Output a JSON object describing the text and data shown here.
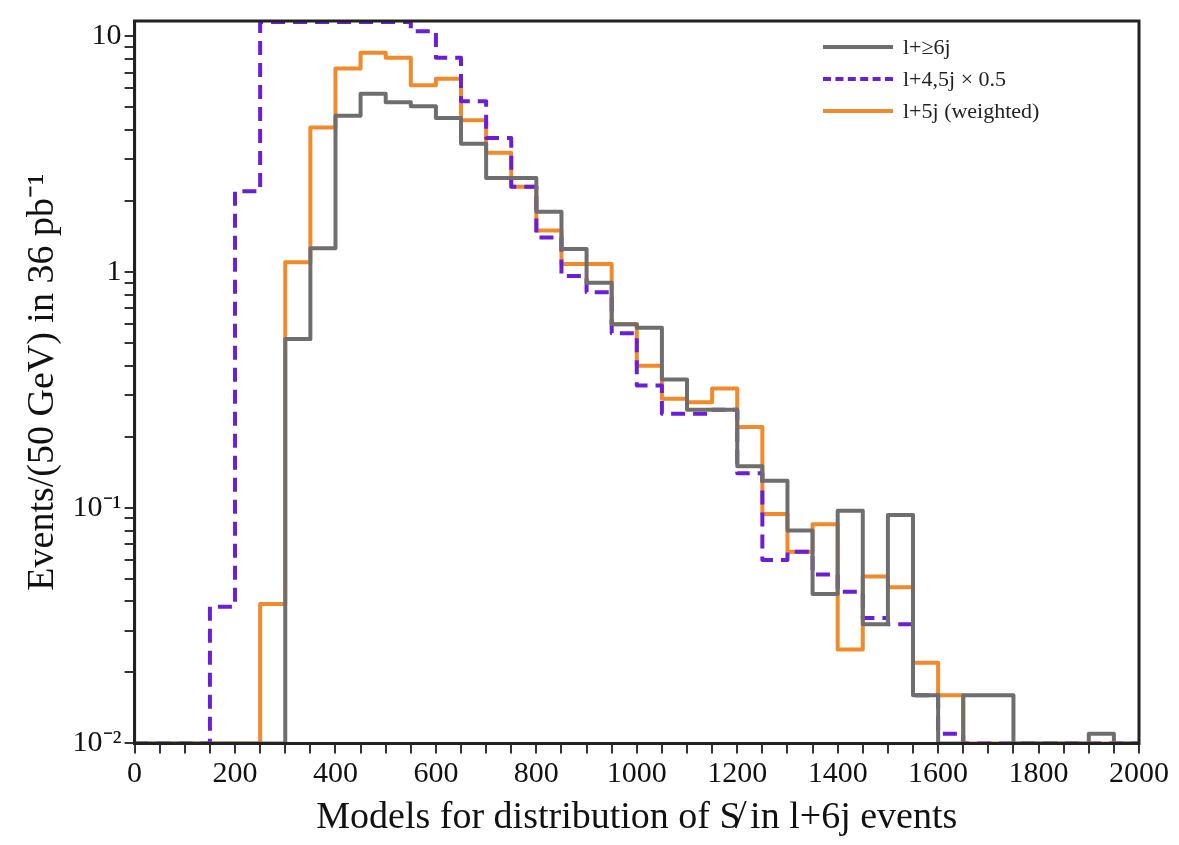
{
  "chart_data": {
    "type": "histogram",
    "xlabel": "Models for distribution of S̸ in l+6j events",
    "ylabel": "Events/(50 GeV) in 36 pb⁻¹",
    "log": "y",
    "grid": false,
    "legend": "top right",
    "xlim": [
      0,
      2000
    ],
    "ylim": [
      0.01,
      11.6
    ],
    "xticks": [
      0,
      {
        "value": 50,
        "label": null
      },
      {
        "value": 100,
        "label": null
      },
      {
        "value": 150,
        "label": null
      },
      200,
      {
        "value": 250,
        "label": null
      },
      {
        "value": 300,
        "label": null
      },
      {
        "value": 350,
        "label": null
      },
      400,
      {
        "value": 450,
        "label": null
      },
      {
        "value": 500,
        "label": null
      },
      {
        "value": 550,
        "label": null
      },
      600,
      {
        "value": 650,
        "label": null
      },
      {
        "value": 700,
        "label": null
      },
      {
        "value": 750,
        "label": null
      },
      800,
      {
        "value": 850,
        "label": null
      },
      {
        "value": 900,
        "label": null
      },
      {
        "value": 950,
        "label": null
      },
      1000,
      {
        "value": 1050,
        "label": null
      },
      {
        "value": 1100,
        "label": null
      },
      {
        "value": 1150,
        "label": null
      },
      1200,
      {
        "value": 1250,
        "label": null
      },
      {
        "value": 1300,
        "label": null
      },
      {
        "value": 1350,
        "label": null
      },
      1400,
      {
        "value": 1450,
        "label": null
      },
      {
        "value": 1500,
        "label": null
      },
      {
        "value": 1550,
        "label": null
      },
      1600,
      {
        "value": 1650,
        "label": null
      },
      {
        "value": 1700,
        "label": null
      },
      {
        "value": 1750,
        "label": null
      },
      1800,
      {
        "value": 1850,
        "label": null
      },
      {
        "value": 1900,
        "label": null
      },
      {
        "value": 1950,
        "label": null
      },
      2000
    ],
    "yticks": [
      {
        "value": 0.01,
        "label": "10⁻²"
      },
      {
        "value": 0.02,
        "label": null
      },
      {
        "value": 0.03,
        "label": null
      },
      {
        "value": 0.04,
        "label": null
      },
      {
        "value": 0.05,
        "label": null
      },
      {
        "value": 0.06,
        "label": null
      },
      {
        "value": 0.07,
        "label": null
      },
      {
        "value": 0.08,
        "label": null
      },
      {
        "value": 0.09,
        "label": null
      },
      {
        "value": 0.1,
        "label": "10⁻¹"
      },
      {
        "value": 0.2,
        "label": null
      },
      {
        "value": 0.3,
        "label": null
      },
      {
        "value": 0.4,
        "label": null
      },
      {
        "value": 0.5,
        "label": null
      },
      {
        "value": 0.6,
        "label": null
      },
      {
        "value": 0.7,
        "label": null
      },
      {
        "value": 0.8,
        "label": null
      },
      {
        "value": 0.9,
        "label": null
      },
      1,
      {
        "value": 2,
        "label": null
      },
      {
        "value": 3,
        "label": null
      },
      {
        "value": 4,
        "label": null
      },
      {
        "value": 5,
        "label": null
      },
      {
        "value": 6,
        "label": null
      },
      {
        "value": 7,
        "label": null
      },
      {
        "value": 8,
        "label": null
      },
      {
        "value": 9,
        "label": null
      },
      10
    ],
    "bins": [
      0,
      50,
      100,
      150,
      200,
      250,
      300,
      350,
      400,
      450,
      500,
      550,
      600,
      650,
      700,
      750,
      800,
      850,
      900,
      950,
      1000,
      1050,
      1100,
      1150,
      1200,
      1250,
      1300,
      1350,
      1400,
      1450,
      1500,
      1550,
      1600,
      1650,
      1700,
      1750,
      1800,
      1850,
      1900,
      1950,
      2000
    ],
    "series": [
      {
        "name": "l+≥6j",
        "color": "#6e6e6e",
        "line_style": "solid",
        "values": [
          0.01,
          0.01,
          0.01,
          0.01,
          0.01,
          0.01,
          0.52,
          1.26,
          4.6,
          5.7,
          5.25,
          5.05,
          4.5,
          3.5,
          2.5,
          2.5,
          1.8,
          1.25,
          0.9,
          0.6,
          0.58,
          0.35,
          0.26,
          0.26,
          0.15,
          0.13,
          0.08,
          0.043,
          0.097,
          0.032,
          0.093,
          0.016,
          0.01,
          0.016,
          0.016,
          0.01,
          0.01,
          0.01,
          0.011,
          0.01
        ]
      },
      {
        "name": "l+4,5j × 0.5",
        "color": "#6a1fd6",
        "line_style": "dashed",
        "values": [
          0.01,
          0.01,
          0.01,
          0.038,
          2.2,
          11.5,
          11.5,
          11.5,
          11.5,
          11.5,
          11.5,
          10.5,
          8.1,
          5.3,
          3.7,
          2.3,
          1.4,
          0.96,
          0.82,
          0.55,
          0.33,
          0.25,
          0.25,
          0.26,
          0.14,
          0.06,
          0.065,
          0.052,
          0.044,
          0.034,
          0.032,
          0.016,
          0.011,
          0.01,
          0.01,
          0.01,
          0.01,
          0.01,
          0.01,
          0.01
        ]
      },
      {
        "name": "l+5j (weighted)",
        "color": "#f08a2a",
        "line_style": "solid",
        "values": [
          0.01,
          0.01,
          0.01,
          0.01,
          0.01,
          0.039,
          1.1,
          4.1,
          7.3,
          8.5,
          8.1,
          6.2,
          6.6,
          4.4,
          3.2,
          2.3,
          1.5,
          1.08,
          1.08,
          0.6,
          0.4,
          0.29,
          0.28,
          0.32,
          0.22,
          0.094,
          0.065,
          0.085,
          0.025,
          0.051,
          0.046,
          0.022,
          0.016,
          0.01,
          0.01,
          0.01,
          0.01,
          0.01,
          0.01,
          0.01
        ]
      }
    ]
  }
}
